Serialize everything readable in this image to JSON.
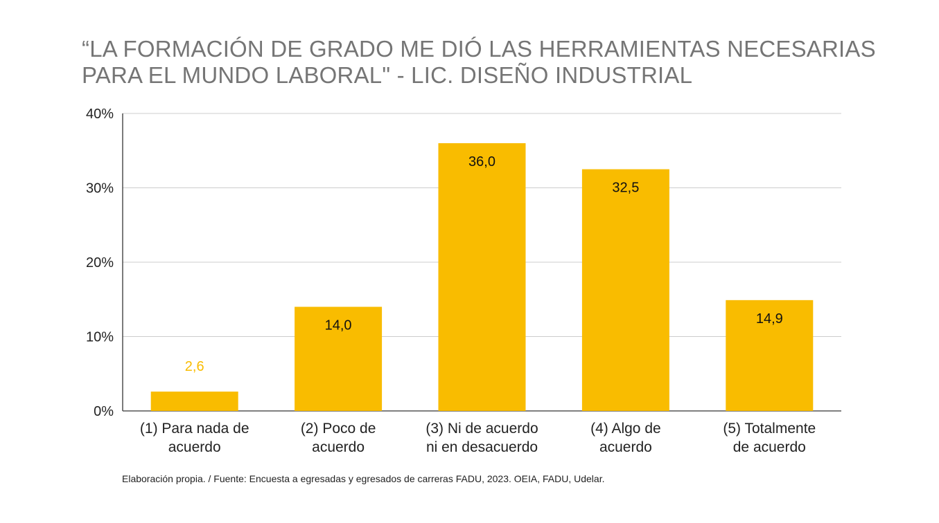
{
  "title_lines": [
    "“LA FORMACIÓN DE GRADO ME DIÓ LAS HERRAMIENTAS NECESARIAS",
    "PARA EL MUNDO LABORAL\" - LIC. DISEÑO INDUSTRIAL"
  ],
  "source": "Elaboración propia. / Fuente: Encuesta a egresadas y egresados de carreras FADU, 2023. OEIA, FADU, Udelar.",
  "colors": {
    "bar": "#F9BC00",
    "gridline": "#cccccc",
    "axis": "#333333",
    "label_dark": "#111111",
    "label_light": "#F9BC00"
  },
  "chart_data": {
    "type": "bar",
    "title": "“LA FORMACIÓN DE GRADO ME DIÓ LAS HERRAMIENTAS NECESARIAS PARA EL MUNDO LABORAL\" - LIC. DISEÑO INDUSTRIAL",
    "categories": [
      [
        "(1) Para nada de",
        "acuerdo"
      ],
      [
        "(2) Poco de",
        "acuerdo"
      ],
      [
        "(3) Ni de acuerdo",
        "ni en desacuerdo"
      ],
      [
        "(4) Algo de",
        "acuerdo"
      ],
      [
        "(5) Totalmente",
        "de acuerdo"
      ]
    ],
    "values": [
      2.6,
      14.0,
      36.0,
      32.5,
      14.9
    ],
    "value_labels": [
      "2,6",
      "14,0",
      "36,0",
      "32,5",
      "14,9"
    ],
    "ylim": [
      0,
      40
    ],
    "yticks": [
      0,
      10,
      20,
      30,
      40
    ],
    "ytick_labels": [
      "0%",
      "10%",
      "20%",
      "30%",
      "40%"
    ],
    "grid": true,
    "xlabel": "",
    "ylabel": ""
  }
}
